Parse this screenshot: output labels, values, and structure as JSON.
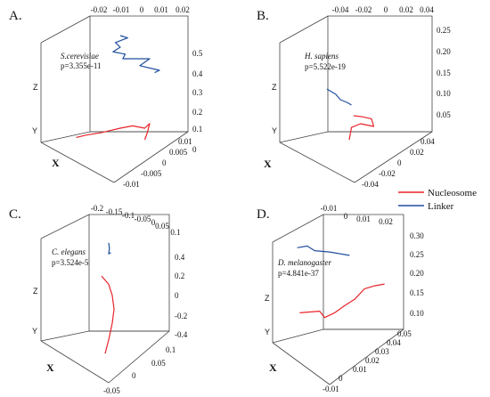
{
  "chart_data": [
    {
      "type": "line3d",
      "panel_label": "A.",
      "organism": "S.cerevisiae",
      "p_value": "p=3.355e-11",
      "axis_labels": {
        "x": "X",
        "y": "Y",
        "z": "Z"
      },
      "top_ticks": [
        "-0.02",
        "-0.01",
        "0",
        "0.01",
        "0.02"
      ],
      "z_ticks": [
        "0",
        "0.1",
        "0.2",
        "0.3",
        "0.4",
        "0.5"
      ],
      "x_ticks": [
        "-0.01",
        "-0.005",
        "0",
        "0.005",
        "0.01"
      ],
      "series": [
        {
          "name": "Linker",
          "color": "#1f4e9e",
          "points": [
            [
              0.0,
              0.0,
              0.5
            ],
            [
              0.003,
              0.0,
              0.49
            ],
            [
              -0.002,
              0.0,
              0.47
            ],
            [
              0.0,
              0.0,
              0.45
            ],
            [
              -0.003,
              0.0,
              0.43
            ],
            [
              0.002,
              0.0,
              0.42
            ],
            [
              0.001,
              0.0,
              0.4
            ],
            [
              0.012,
              0.0,
              0.4
            ],
            [
              0.008,
              0.0,
              0.37
            ],
            [
              0.016,
              0.0,
              0.35
            ],
            [
              0.014,
              0.0,
              0.34
            ]
          ]
        },
        {
          "name": "Nucleosome",
          "color": "#e8242a",
          "points": [
            [
              -0.018,
              0.0,
              0.06
            ],
            [
              -0.014,
              0.0,
              0.07
            ],
            [
              -0.008,
              0.0,
              0.08
            ],
            [
              -0.004,
              0.0,
              0.09
            ],
            [
              0.0,
              0.0,
              0.1
            ],
            [
              0.005,
              0.0,
              0.11
            ],
            [
              0.01,
              0.0,
              0.1
            ],
            [
              0.012,
              0.0,
              0.12
            ],
            [
              0.011,
              0.0,
              0.08
            ],
            [
              0.01,
              0.0,
              0.05
            ]
          ]
        }
      ]
    },
    {
      "type": "line3d",
      "panel_label": "B.",
      "organism": "H. sapiens",
      "p_value": "p=5.522e-19",
      "axis_labels": {
        "x": "X",
        "y": "Y",
        "z": "Z"
      },
      "top_ticks": [
        "-0.04",
        "-0.02",
        "0",
        "0.02",
        "0.04"
      ],
      "z_ticks": [
        "0.05",
        "0.10",
        "0.15",
        "0.20",
        "0.25"
      ],
      "x_ticks": [
        "-0.04",
        "-0.02",
        "0",
        "0.02",
        "0.04"
      ],
      "series": [
        {
          "name": "Linker",
          "color": "#1f4e9e",
          "points": [
            [
              -0.012,
              0.0,
              0.15
            ],
            [
              -0.008,
              0.0,
              0.145
            ],
            [
              -0.004,
              0.0,
              0.14
            ],
            [
              0.0,
              0.0,
              0.13
            ],
            [
              0.006,
              0.0,
              0.125
            ],
            [
              0.01,
              0.0,
              0.12
            ]
          ]
        },
        {
          "name": "Nucleosome",
          "color": "#e8242a",
          "points": [
            [
              0.012,
              0.0,
              0.1
            ],
            [
              0.02,
              0.0,
              0.098
            ],
            [
              0.028,
              0.0,
              0.094
            ],
            [
              0.03,
              0.0,
              0.08
            ],
            [
              0.018,
              0.0,
              0.085
            ],
            [
              0.01,
              0.0,
              0.078
            ],
            [
              0.008,
              0.0,
              0.055
            ]
          ]
        }
      ]
    },
    {
      "type": "line3d",
      "panel_label": "C.",
      "organism": "C. elegans",
      "p_value": "p=3.524e-5",
      "axis_labels": {
        "x": "X",
        "y": "Y",
        "z": "Z"
      },
      "top_ticks": [
        "-0.2",
        "-0.15",
        "-0.1",
        "-0.05",
        "0",
        "0.05",
        "0.1"
      ],
      "z_ticks": [
        "-0.4",
        "-0.2",
        "0",
        "0.2",
        "0.4"
      ],
      "x_ticks": [
        "-0.05",
        "0",
        "0.05",
        "0.1"
      ],
      "series": [
        {
          "name": "Linker",
          "color": "#1f4e9e",
          "points": [
            [
              -0.02,
              0.0,
              0.4
            ],
            [
              -0.018,
              0.0,
              0.36
            ],
            [
              -0.02,
              0.0,
              0.32
            ],
            [
              -0.014,
              0.0,
              0.33
            ]
          ]
        },
        {
          "name": "Nucleosome",
          "color": "#e8242a",
          "points": [
            [
              -0.04,
              0.0,
              0.16
            ],
            [
              -0.02,
              0.0,
              0.1
            ],
            [
              -0.01,
              0.0,
              0.02
            ],
            [
              -0.005,
              0.0,
              -0.08
            ],
            [
              -0.01,
              0.0,
              -0.18
            ],
            [
              -0.02,
              0.0,
              -0.3
            ],
            [
              -0.03,
              0.0,
              -0.4
            ]
          ]
        }
      ]
    },
    {
      "type": "line3d",
      "panel_label": "D.",
      "organism": "D. melanogaster",
      "p_value": "p=4.841e-37",
      "axis_labels": {
        "x": "X",
        "y": "Y",
        "z": "Z"
      },
      "top_ticks": [
        "-0.01",
        "0",
        "0.01",
        "0.02"
      ],
      "z_ticks": [
        "0.10",
        "0.15",
        "0.20",
        "0.25",
        "0.30"
      ],
      "x_ticks": [
        "-0.01",
        "0",
        "0.01",
        "0.02",
        "0.03",
        "0.04",
        "0.05"
      ],
      "series": [
        {
          "name": "Linker",
          "color": "#1f4e9e",
          "points": [
            [
              -0.013,
              0.0,
              0.262
            ],
            [
              -0.009,
              0.0,
              0.266
            ],
            [
              -0.006,
              0.0,
              0.255
            ],
            [
              0.0,
              0.0,
              0.252
            ],
            [
              0.008,
              0.0,
              0.244
            ]
          ]
        },
        {
          "name": "Nucleosome",
          "color": "#e8242a",
          "points": [
            [
              -0.012,
              0.0,
              0.108
            ],
            [
              -0.004,
              0.0,
              0.112
            ],
            [
              -0.002,
              0.0,
              0.097
            ],
            [
              0.002,
              0.0,
              0.108
            ],
            [
              0.006,
              0.0,
              0.125
            ],
            [
              0.01,
              0.0,
              0.14
            ],
            [
              0.014,
              0.0,
              0.165
            ],
            [
              0.018,
              0.0,
              0.172
            ],
            [
              0.022,
              0.0,
              0.176
            ]
          ]
        }
      ]
    }
  ],
  "legend": {
    "position": "right",
    "items": [
      {
        "label": "Nucleosome",
        "color": "#e8242a"
      },
      {
        "label": "Linker",
        "color": "#1f4e9e"
      }
    ]
  }
}
